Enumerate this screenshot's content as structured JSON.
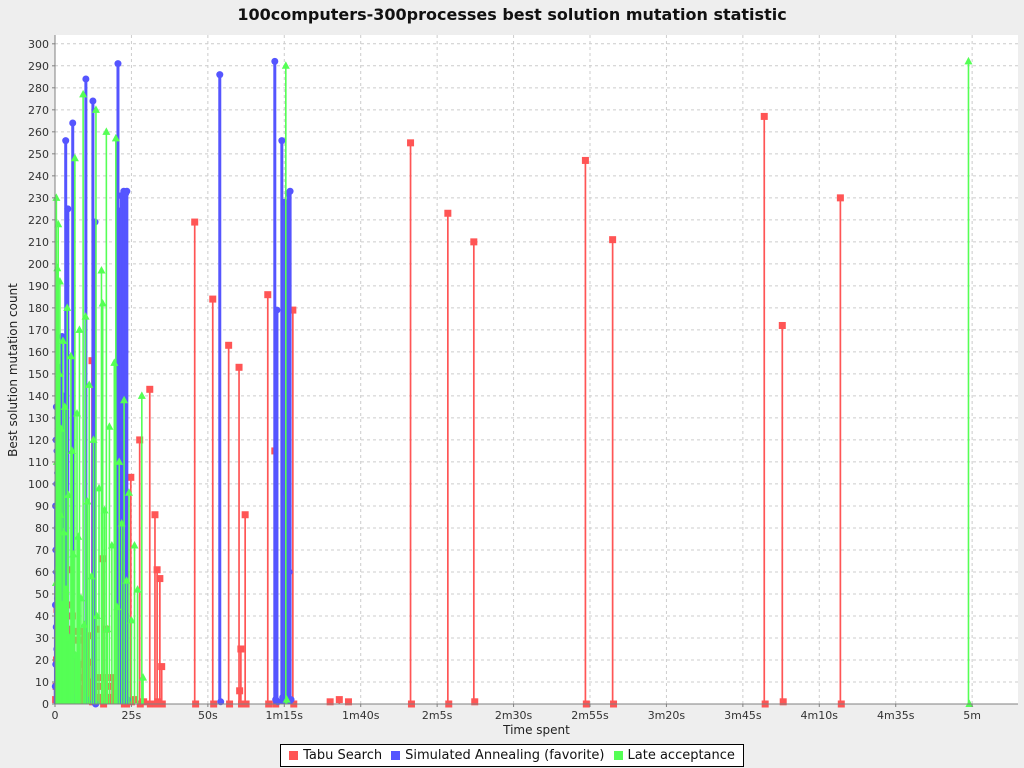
{
  "chart_data": {
    "type": "line",
    "line_style": "spike",
    "title": "100computers-300processes best solution mutation statistic",
    "xlabel": "Time spent",
    "ylabel": "Best solution mutation count",
    "xlim_seconds": [
      0,
      315
    ],
    "ylim": [
      0,
      304
    ],
    "grid": "dashed",
    "legend_position": "bottom-center",
    "colors": {
      "page_bg": "#EEEEEE",
      "plot_bg": "#FFFFFF",
      "grid": "#CCCCCC",
      "axis": "#808080",
      "tick_text": "#333333"
    },
    "x_ticks": [
      {
        "t": 0,
        "label": "0"
      },
      {
        "t": 25,
        "label": "25s"
      },
      {
        "t": 50,
        "label": "50s"
      },
      {
        "t": 75,
        "label": "1m15s"
      },
      {
        "t": 100,
        "label": "1m40s"
      },
      {
        "t": 125,
        "label": "2m5s"
      },
      {
        "t": 150,
        "label": "2m30s"
      },
      {
        "t": 175,
        "label": "2m55s"
      },
      {
        "t": 200,
        "label": "3m20s"
      },
      {
        "t": 225,
        "label": "3m45s"
      },
      {
        "t": 250,
        "label": "4m10s"
      },
      {
        "t": 275,
        "label": "4m35s"
      },
      {
        "t": 300,
        "label": "5m"
      }
    ],
    "y_ticks": [
      0,
      10,
      20,
      30,
      40,
      50,
      60,
      70,
      80,
      90,
      100,
      110,
      120,
      130,
      140,
      150,
      160,
      170,
      180,
      190,
      200,
      210,
      220,
      230,
      240,
      250,
      260,
      270,
      280,
      290,
      300
    ],
    "series": [
      {
        "name": "Tabu Search",
        "color": "#FF5555",
        "marker": "square",
        "line_width": 1.7,
        "points": [
          [
            0.2,
            2
          ],
          [
            0.35,
            8
          ],
          [
            0.5,
            20
          ],
          [
            0.65,
            43
          ],
          [
            0.8,
            5
          ],
          [
            0.95,
            15
          ],
          [
            1.1,
            44
          ],
          [
            1.25,
            3
          ],
          [
            1.4,
            21
          ],
          [
            1.55,
            10
          ],
          [
            1.7,
            30
          ],
          [
            1.85,
            2
          ],
          [
            2.0,
            46
          ],
          [
            2.15,
            12
          ],
          [
            2.3,
            24
          ],
          [
            2.5,
            6
          ],
          [
            2.7,
            50
          ],
          [
            2.9,
            2
          ],
          [
            3.1,
            33
          ],
          [
            3.3,
            14
          ],
          [
            3.5,
            25
          ],
          [
            3.7,
            4
          ],
          [
            3.9,
            45
          ],
          [
            4.1,
            9
          ],
          [
            4.3,
            61
          ],
          [
            4.5,
            2
          ],
          [
            4.7,
            18
          ],
          [
            4.9,
            34
          ],
          [
            5.1,
            7
          ],
          [
            5.3,
            26
          ],
          [
            5.5,
            2
          ],
          [
            5.7,
            40
          ],
          [
            5.9,
            13
          ],
          [
            6.1,
            33
          ],
          [
            6.3,
            4
          ],
          [
            6.6,
            21
          ],
          [
            6.9,
            9
          ],
          [
            7.2,
            16
          ],
          [
            7.5,
            2
          ],
          [
            7.8,
            29
          ],
          [
            8.1,
            7
          ],
          [
            8.4,
            18
          ],
          [
            8.7,
            3
          ],
          [
            9.0,
            33
          ],
          [
            9.4,
            12
          ],
          [
            9.8,
            5
          ],
          [
            10.2,
            24
          ],
          [
            10.6,
            2
          ],
          [
            11.0,
            31
          ],
          [
            11.4,
            10
          ],
          [
            11.8,
            19
          ],
          [
            12.1,
            156
          ],
          [
            12.3,
            1
          ],
          [
            12.7,
            4
          ],
          [
            13.1,
            12
          ],
          [
            13.5,
            34
          ],
          [
            13.9,
            2
          ],
          [
            14.3,
            8
          ],
          [
            14.8,
            3
          ],
          [
            15.3,
            12
          ],
          [
            15.7,
            66
          ],
          [
            15.9,
            0
          ],
          [
            16.4,
            12
          ],
          [
            16.9,
            34
          ],
          [
            17.4,
            2
          ],
          [
            17.9,
            8
          ],
          [
            18.4,
            3
          ],
          [
            19.0,
            12
          ],
          [
            19.6,
            2
          ],
          [
            20.2,
            5
          ],
          [
            21.0,
            2
          ],
          [
            22.5,
            188
          ],
          [
            22.7,
            0
          ],
          [
            23.2,
            59
          ],
          [
            23.4,
            0
          ],
          [
            24.8,
            103
          ],
          [
            25.0,
            1
          ],
          [
            26.0,
            2
          ],
          [
            27.7,
            120
          ],
          [
            27.9,
            0
          ],
          [
            29.0,
            1
          ],
          [
            31.0,
            143
          ],
          [
            31.2,
            0
          ],
          [
            32.7,
            86
          ],
          [
            32.9,
            0
          ],
          [
            33.4,
            61
          ],
          [
            33.6,
            1
          ],
          [
            34.3,
            57
          ],
          [
            34.5,
            0
          ],
          [
            34.9,
            17
          ],
          [
            35.1,
            0
          ],
          [
            45.7,
            219
          ],
          [
            46.0,
            0
          ],
          [
            51.6,
            184
          ],
          [
            51.9,
            0
          ],
          [
            56.8,
            163
          ],
          [
            57.1,
            0
          ],
          [
            60.2,
            153
          ],
          [
            60.4,
            6
          ],
          [
            60.8,
            25
          ],
          [
            61.0,
            0
          ],
          [
            62.2,
            86
          ],
          [
            62.5,
            0
          ],
          [
            69.6,
            186
          ],
          [
            69.9,
            0
          ],
          [
            71.9,
            115
          ],
          [
            72.2,
            0
          ],
          [
            77.8,
            179
          ],
          [
            78.1,
            0
          ],
          [
            90.0,
            1
          ],
          [
            93.0,
            2
          ],
          [
            96.0,
            1
          ],
          [
            116.3,
            255
          ],
          [
            116.6,
            0
          ],
          [
            128.5,
            223
          ],
          [
            128.8,
            0
          ],
          [
            137.0,
            210
          ],
          [
            137.3,
            1
          ],
          [
            173.5,
            247
          ],
          [
            173.8,
            0
          ],
          [
            182.4,
            211
          ],
          [
            182.7,
            0
          ],
          [
            232.0,
            267
          ],
          [
            232.3,
            0
          ],
          [
            237.9,
            172
          ],
          [
            238.2,
            1
          ],
          [
            256.9,
            230
          ],
          [
            257.2,
            0
          ]
        ]
      },
      {
        "name": "Simulated Annealing (favorite)",
        "color": "#5555FF",
        "marker": "circle",
        "line_width": 3,
        "points": [
          [
            0.1,
            8
          ],
          [
            0.15,
            45
          ],
          [
            0.2,
            90
          ],
          [
            0.25,
            18
          ],
          [
            0.3,
            70
          ],
          [
            0.35,
            120
          ],
          [
            0.4,
            35
          ],
          [
            0.45,
            135
          ],
          [
            0.5,
            60
          ],
          [
            0.55,
            100
          ],
          [
            0.6,
            25
          ],
          [
            0.65,
            115
          ],
          [
            0.7,
            80
          ],
          [
            0.75,
            130
          ],
          [
            0.8,
            48
          ],
          [
            0.85,
            105
          ],
          [
            0.9,
            15
          ],
          [
            0.95,
            125
          ],
          [
            1.0,
            68
          ],
          [
            1.05,
            92
          ],
          [
            1.1,
            38
          ],
          [
            1.15,
            110
          ],
          [
            1.2,
            55
          ],
          [
            1.25,
            135
          ],
          [
            1.3,
            20
          ],
          [
            1.35,
            98
          ],
          [
            1.4,
            75
          ],
          [
            1.45,
            128
          ],
          [
            1.5,
            42
          ],
          [
            1.55,
            104
          ],
          [
            1.6,
            153
          ],
          [
            1.65,
            62
          ],
          [
            1.7,
            118
          ],
          [
            1.75,
            30
          ],
          [
            1.8,
            88
          ],
          [
            1.85,
            133
          ],
          [
            1.9,
            50
          ],
          [
            1.95,
            112
          ],
          [
            2.0,
            78
          ],
          [
            2.1,
            122
          ],
          [
            2.2,
            36
          ],
          [
            2.3,
            167
          ],
          [
            2.4,
            95
          ],
          [
            2.5,
            58
          ],
          [
            2.6,
            140
          ],
          [
            2.7,
            22
          ],
          [
            2.8,
            108
          ],
          [
            2.9,
            72
          ],
          [
            3.0,
            126
          ],
          [
            3.2,
            85
          ],
          [
            3.5,
            256
          ],
          [
            3.7,
            4
          ],
          [
            4.2,
            225
          ],
          [
            4.4,
            2
          ],
          [
            5.8,
            264
          ],
          [
            6.0,
            3
          ],
          [
            10.1,
            284
          ],
          [
            10.3,
            2
          ],
          [
            12.4,
            274
          ],
          [
            12.6,
            1
          ],
          [
            13.1,
            219
          ],
          [
            13.3,
            0
          ],
          [
            20.6,
            291
          ],
          [
            20.8,
            3
          ],
          [
            21.3,
            224
          ],
          [
            21.5,
            60
          ],
          [
            21.7,
            231
          ],
          [
            21.9,
            20
          ],
          [
            22.1,
            208
          ],
          [
            22.3,
            120
          ],
          [
            22.5,
            233
          ],
          [
            22.7,
            8
          ],
          [
            22.9,
            160
          ],
          [
            23.1,
            232
          ],
          [
            23.3,
            40
          ],
          [
            23.5,
            233
          ],
          [
            23.7,
            2
          ],
          [
            53.9,
            286
          ],
          [
            54.2,
            1
          ],
          [
            71.9,
            292
          ],
          [
            72.2,
            2
          ],
          [
            72.6,
            179
          ],
          [
            72.9,
            1
          ],
          [
            74.2,
            256
          ],
          [
            74.5,
            3
          ],
          [
            75.1,
            228
          ],
          [
            75.4,
            96
          ],
          [
            75.7,
            227
          ],
          [
            76.0,
            150
          ],
          [
            76.3,
            232
          ],
          [
            76.6,
            60
          ],
          [
            76.9,
            233
          ],
          [
            77.2,
            2
          ]
        ]
      },
      {
        "name": "Late acceptance",
        "color": "#55FF55",
        "marker": "triangle",
        "line_width": 1.6,
        "points": [
          [
            0.3,
            55
          ],
          [
            0.45,
            230
          ],
          [
            0.6,
            110
          ],
          [
            0.75,
            198
          ],
          [
            0.9,
            62
          ],
          [
            1.05,
            218
          ],
          [
            1.2,
            28
          ],
          [
            1.4,
            150
          ],
          [
            1.6,
            192
          ],
          [
            1.8,
            86
          ],
          [
            2.0,
            125
          ],
          [
            2.3,
            45
          ],
          [
            2.6,
            165
          ],
          [
            2.9,
            78
          ],
          [
            3.2,
            135
          ],
          [
            3.6,
            52
          ],
          [
            4.0,
            180
          ],
          [
            4.4,
            95
          ],
          [
            4.8,
            30
          ],
          [
            5.2,
            158
          ],
          [
            5.6,
            115
          ],
          [
            6.0,
            68
          ],
          [
            6.5,
            248
          ],
          [
            6.8,
            22
          ],
          [
            7.2,
            132
          ],
          [
            7.6,
            76
          ],
          [
            8.0,
            170
          ],
          [
            8.5,
            48
          ],
          [
            9.2,
            277
          ],
          [
            9.5,
            36
          ],
          [
            10.0,
            176
          ],
          [
            10.6,
            92
          ],
          [
            11.2,
            145
          ],
          [
            11.9,
            58
          ],
          [
            12.6,
            120
          ],
          [
            13.4,
            270
          ],
          [
            13.7,
            40
          ],
          [
            14.4,
            98
          ],
          [
            15.2,
            197
          ],
          [
            15.6,
            182
          ],
          [
            16.2,
            88
          ],
          [
            16.8,
            260
          ],
          [
            17.1,
            34
          ],
          [
            17.8,
            126
          ],
          [
            18.6,
            72
          ],
          [
            19.4,
            155
          ],
          [
            19.9,
            257
          ],
          [
            20.3,
            44
          ],
          [
            21.0,
            110
          ],
          [
            21.8,
            82
          ],
          [
            22.6,
            138
          ],
          [
            23.4,
            56
          ],
          [
            24.2,
            96
          ],
          [
            25.0,
            38
          ],
          [
            26.0,
            72
          ],
          [
            27.0,
            52
          ],
          [
            28.4,
            140
          ],
          [
            28.8,
            12
          ],
          [
            75.5,
            290
          ],
          [
            75.8,
            2
          ],
          [
            298.8,
            292
          ],
          [
            299.1,
            0
          ]
        ]
      }
    ]
  }
}
